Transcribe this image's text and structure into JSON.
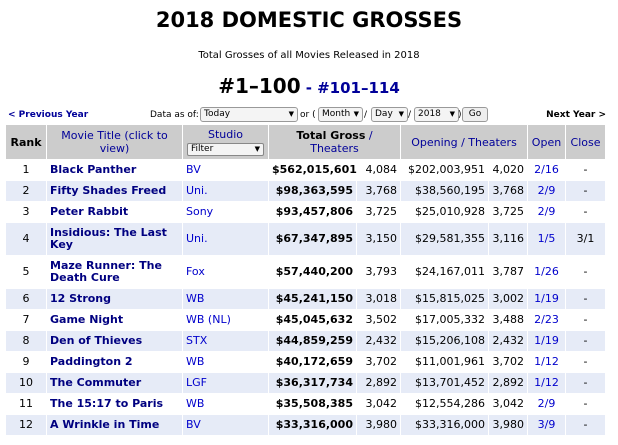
{
  "header": {
    "title": "2018 DOMESTIC GROSSES",
    "subtitle": "Total Grosses of all Movies Released in 2018",
    "range": "#1–100",
    "separator": "-",
    "next_range": "#101–114"
  },
  "controls": {
    "previous": "< Previous Year",
    "data_as_of": "Data as of:",
    "date_select": "Today",
    "or": "or (",
    "month": "Month",
    "slash": "/",
    "day": "Day",
    "year": "2018",
    "close_paren": ")",
    "go": "Go",
    "next": "Next Year >"
  },
  "table": {
    "columns": {
      "rank": "Rank",
      "title": "Movie Title (click to view)",
      "studio": "Studio",
      "studio_filter": "Filter",
      "gross": "Total Gross",
      "gross_theaters": "/ Theaters",
      "opening": "Opening / Theaters",
      "open": "Open",
      "close": "Close"
    },
    "rows": [
      [
        "1",
        "Black Panther",
        "BV",
        "$562,015,601",
        "4,084",
        "$202,003,951",
        "4,020",
        "2/16",
        "-"
      ],
      [
        "2",
        "Fifty Shades Freed",
        "Uni.",
        "$98,363,595",
        "3,768",
        "$38,560,195",
        "3,768",
        "2/9",
        "-"
      ],
      [
        "3",
        "Peter Rabbit",
        "Sony",
        "$93,457,806",
        "3,725",
        "$25,010,928",
        "3,725",
        "2/9",
        "-"
      ],
      [
        "4",
        "Insidious: The Last Key",
        "Uni.",
        "$67,347,895",
        "3,150",
        "$29,581,355",
        "3,116",
        "1/5",
        "3/1"
      ],
      [
        "5",
        "Maze Runner: The Death Cure",
        "Fox",
        "$57,440,200",
        "3,793",
        "$24,167,011",
        "3,787",
        "1/26",
        "-"
      ],
      [
        "6",
        "12 Strong",
        "WB",
        "$45,241,150",
        "3,018",
        "$15,815,025",
        "3,002",
        "1/19",
        "-"
      ],
      [
        "7",
        "Game Night",
        "WB (NL)",
        "$45,045,632",
        "3,502",
        "$17,005,332",
        "3,488",
        "2/23",
        "-"
      ],
      [
        "8",
        "Den of Thieves",
        "STX",
        "$44,859,259",
        "2,432",
        "$15,206,108",
        "2,432",
        "1/19",
        "-"
      ],
      [
        "9",
        "Paddington 2",
        "WB",
        "$40,172,659",
        "3,702",
        "$11,001,961",
        "3,702",
        "1/12",
        "-"
      ],
      [
        "10",
        "The Commuter",
        "LGF",
        "$36,317,734",
        "2,892",
        "$13,701,452",
        "2,892",
        "1/12",
        "-"
      ],
      [
        "11",
        "The 15:17 to Paris",
        "WB",
        "$35,508,385",
        "3,042",
        "$12,554,286",
        "3,042",
        "2/9",
        "-"
      ],
      [
        "12",
        "A Wrinkle in Time",
        "BV",
        "$33,316,000",
        "3,980",
        "$33,316,000",
        "3,980",
        "3/9",
        "-"
      ]
    ]
  }
}
